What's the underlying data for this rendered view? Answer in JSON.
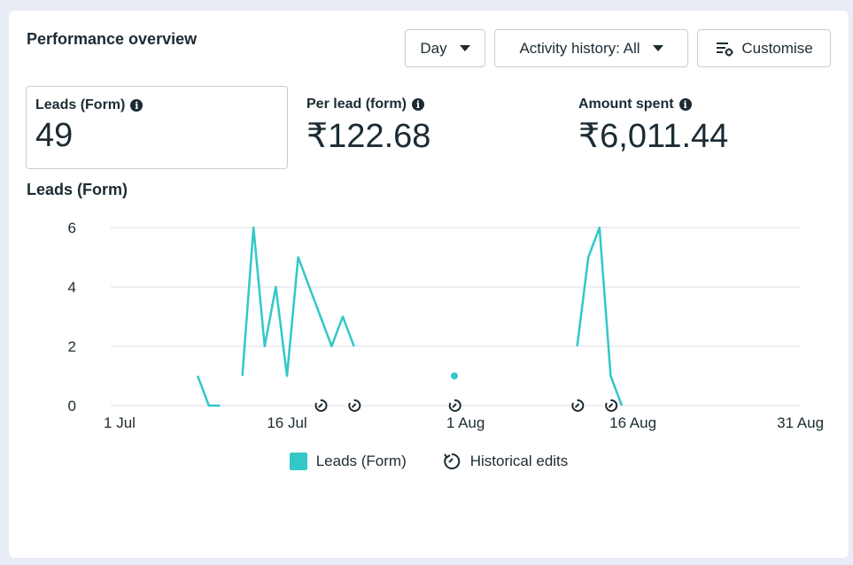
{
  "header": {
    "title": "Performance overview",
    "day_label": "Day",
    "activity_label": "Activity history: All",
    "customise_label": "Customise"
  },
  "metrics": [
    {
      "label": "Leads (Form)",
      "value": "49"
    },
    {
      "label": "Per lead (form)",
      "value": "₹122.68"
    },
    {
      "label": "Amount spent",
      "value": "₹6,011.44"
    }
  ],
  "chart": {
    "title": "Leads (Form)",
    "legend": {
      "series": "Leads (Form)",
      "edits": "Historical edits"
    }
  },
  "colors": {
    "series": "#32c8c8",
    "text": "#1c2b33",
    "grid": "#dcdfe3"
  },
  "chart_data": {
    "type": "line",
    "x_start": "1 Jul",
    "x_ticks": [
      "1 Jul",
      "16 Jul",
      "1 Aug",
      "16 Aug",
      "31 Aug"
    ],
    "x_tick_days": [
      0,
      15,
      31,
      46,
      61
    ],
    "y_ticks": [
      0,
      2,
      4,
      6
    ],
    "ylim": [
      0,
      6
    ],
    "series": [
      {
        "name": "Leads (Form)",
        "segments": [
          [
            [
              7,
              1
            ],
            [
              8,
              0
            ],
            [
              9,
              0
            ]
          ],
          [
            [
              11,
              1
            ],
            [
              12,
              6
            ],
            [
              13,
              2
            ],
            [
              14,
              4
            ],
            [
              15,
              1
            ],
            [
              16,
              5
            ],
            [
              17,
              4
            ],
            [
              18,
              3
            ],
            [
              19,
              2
            ],
            [
              20,
              3
            ],
            [
              21,
              2
            ]
          ],
          [
            [
              30,
              1
            ]
          ],
          [
            [
              41,
              2
            ],
            [
              42,
              5
            ],
            [
              43,
              6
            ],
            [
              44,
              1
            ],
            [
              45,
              0
            ]
          ]
        ]
      }
    ],
    "historical_edits": [
      18,
      21,
      30,
      41,
      44
    ]
  }
}
